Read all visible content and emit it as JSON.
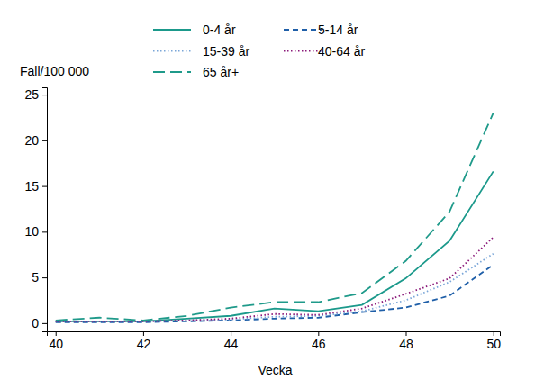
{
  "chart_data": {
    "type": "line",
    "x_label": "Vecka",
    "y_label": "Fall/100 000",
    "x": [
      40,
      41,
      42,
      43,
      44,
      45,
      46,
      47,
      48,
      49,
      50
    ],
    "xlim": [
      39.8,
      50.15
    ],
    "xticks": [
      40,
      42,
      44,
      46,
      48,
      50
    ],
    "ylim": [
      -0.9,
      25.8
    ],
    "yticks": [
      0,
      5,
      10,
      15,
      20,
      25
    ],
    "grid": false,
    "legend": "top",
    "series": [
      {
        "name": "0-4 år",
        "color": "#1b998b",
        "line_style": "solid",
        "values": [
          0.2,
          0.2,
          0.2,
          0.5,
          0.8,
          1.6,
          1.3,
          2.0,
          4.9,
          9.0,
          16.6
        ]
      },
      {
        "name": "5-14 år",
        "color": "#1f5fa8",
        "line_style": "dashed",
        "values": [
          0.1,
          0.1,
          0.1,
          0.2,
          0.3,
          0.5,
          0.6,
          1.2,
          1.7,
          3.0,
          6.4
        ]
      },
      {
        "name": "15-39 år",
        "color": "#7aa6d8",
        "line_style": "dotted",
        "values": [
          0.2,
          0.2,
          0.2,
          0.3,
          0.4,
          0.7,
          0.8,
          1.3,
          2.5,
          4.5,
          7.6
        ]
      },
      {
        "name": "40-64 år",
        "color": "#8b1a7a",
        "line_style": "dotted",
        "values": [
          0.2,
          0.2,
          0.2,
          0.3,
          0.5,
          1.0,
          0.9,
          1.6,
          3.2,
          4.9,
          9.4
        ]
      },
      {
        "name": "65 år+",
        "color": "#1f9a8a",
        "line_style": "longdash",
        "values": [
          0.3,
          0.6,
          0.3,
          0.8,
          1.7,
          2.3,
          2.3,
          3.3,
          6.8,
          12.2,
          23.0
        ]
      }
    ]
  }
}
